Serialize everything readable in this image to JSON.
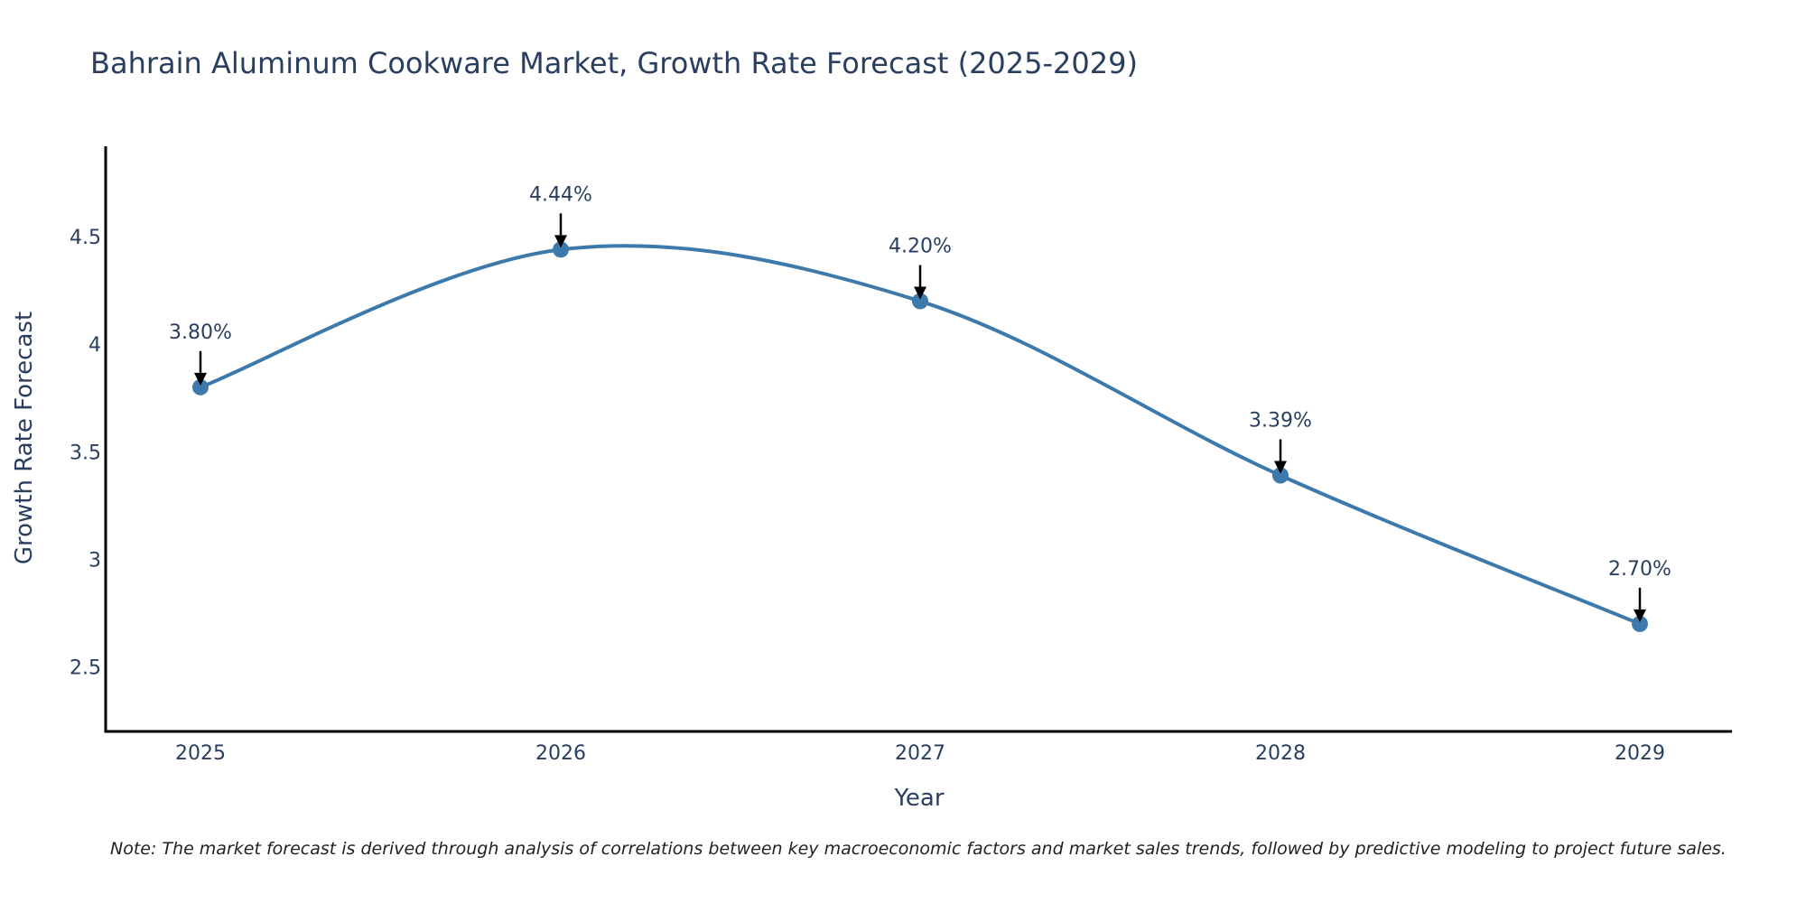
{
  "chart_data": {
    "type": "line",
    "title": "Bahrain Aluminum Cookware Market, Growth Rate Forecast (2025-2029)",
    "xlabel": "Year",
    "ylabel": "Growth Rate Forecast",
    "x": [
      "2025",
      "2026",
      "2027",
      "2028",
      "2029"
    ],
    "series": [
      {
        "name": "Growth Rate Forecast",
        "values": [
          3.8,
          4.44,
          4.2,
          3.39,
          2.7
        ],
        "labels": [
          "3.80%",
          "4.44%",
          "4.20%",
          "3.39%",
          "2.70%"
        ],
        "color": "#3d7aab"
      }
    ],
    "yticks": [
      2.5,
      3,
      3.5,
      4,
      4.5
    ],
    "ytick_labels": [
      "2.5",
      "3",
      "3.5",
      "4",
      "4.5"
    ],
    "ylim": [
      2.2,
      4.92
    ],
    "line_shape": "spline",
    "grid": false,
    "note": "Note: The market forecast is derived through analysis of correlations between key macroeconomic factors and market sales trends, followed by predictive modeling to project future sales."
  },
  "colors": {
    "text": "#2a3f5f",
    "axis": "#000000",
    "series": "#3d7aab"
  }
}
